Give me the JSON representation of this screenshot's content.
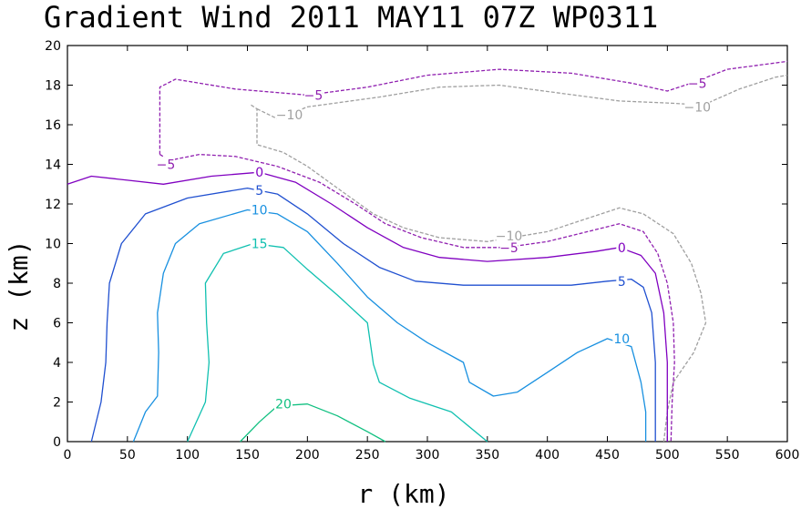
{
  "chart_data": {
    "type": "contour",
    "title": "Gradient Wind 2011 MAY11 07Z  WP0311",
    "xlabel": "r (km)",
    "ylabel": "z (km)",
    "xlim": [
      0,
      600
    ],
    "ylim": [
      0,
      20
    ],
    "xticks": [
      "0",
      "50",
      "100",
      "150",
      "200",
      "250",
      "300",
      "350",
      "400",
      "450",
      "500",
      "550",
      "600"
    ],
    "yticks": [
      "0",
      "2",
      "4",
      "6",
      "8",
      "10",
      "12",
      "14",
      "16",
      "18",
      "20"
    ],
    "grid": false,
    "contours": [
      {
        "level": -10,
        "color": "#a0a0a0",
        "dashed": true,
        "points": [
          [
            153,
            17.0
          ],
          [
            158,
            16.8
          ],
          [
            158,
            15.0
          ],
          [
            180,
            14.6
          ],
          [
            200,
            13.9
          ],
          [
            225,
            12.8
          ],
          [
            255,
            11.5
          ],
          [
            280,
            10.8
          ],
          [
            310,
            10.3
          ],
          [
            350,
            10.1
          ],
          [
            400,
            10.6
          ],
          [
            440,
            11.4
          ],
          [
            460,
            11.8
          ],
          [
            480,
            11.5
          ],
          [
            505,
            10.5
          ],
          [
            520,
            9.0
          ],
          [
            528,
            7.5
          ],
          [
            532,
            6.0
          ],
          [
            522,
            4.5
          ],
          [
            505,
            3.0
          ],
          [
            500,
            1.5
          ],
          [
            497,
            0.0
          ]
        ],
        "points2": [
          [
            158,
            16.8
          ],
          [
            175,
            16.3
          ],
          [
            200,
            16.9
          ],
          [
            260,
            17.4
          ],
          [
            310,
            17.9
          ],
          [
            360,
            18.0
          ],
          [
            410,
            17.6
          ],
          [
            460,
            17.2
          ],
          [
            500,
            17.1
          ],
          [
            530,
            17.0
          ],
          [
            560,
            17.8
          ],
          [
            590,
            18.4
          ],
          [
            600,
            18.5
          ]
        ],
        "labels": [
          {
            "text": "−10",
            "x": 185,
            "y": 16.5
          },
          {
            "text": "−10",
            "x": 525,
            "y": 16.9
          },
          {
            "text": "−10",
            "x": 368,
            "y": 10.4
          }
        ]
      },
      {
        "level": -5,
        "color": "#9020b0",
        "dashed": true,
        "points": [
          [
            77,
            14.5
          ],
          [
            85,
            14.2
          ],
          [
            110,
            14.5
          ],
          [
            140,
            14.4
          ],
          [
            175,
            13.9
          ],
          [
            210,
            13.1
          ],
          [
            240,
            12.0
          ],
          [
            265,
            11.0
          ],
          [
            295,
            10.3
          ],
          [
            330,
            9.8
          ],
          [
            365,
            9.8
          ],
          [
            400,
            10.1
          ],
          [
            440,
            10.7
          ],
          [
            460,
            11.0
          ],
          [
            480,
            10.6
          ],
          [
            492,
            9.5
          ],
          [
            500,
            8.0
          ],
          [
            505,
            6.0
          ],
          [
            506,
            4.0
          ],
          [
            504,
            2.0
          ],
          [
            503,
            0.0
          ]
        ],
        "points2": [
          [
            77,
            14.5
          ],
          [
            77,
            17.9
          ],
          [
            90,
            18.3
          ],
          [
            140,
            17.8
          ],
          [
            200,
            17.5
          ],
          [
            250,
            17.9
          ],
          [
            300,
            18.5
          ],
          [
            360,
            18.8
          ],
          [
            420,
            18.6
          ],
          [
            470,
            18.1
          ],
          [
            500,
            17.7
          ],
          [
            520,
            18.1
          ],
          [
            550,
            18.8
          ],
          [
            600,
            19.2
          ]
        ],
        "labels": [
          {
            "text": "−5",
            "x": 205,
            "y": 17.5
          },
          {
            "text": "−5",
            "x": 525,
            "y": 18.1
          },
          {
            "text": "−5",
            "x": 82,
            "y": 14.0
          },
          {
            "text": "−5",
            "x": 368,
            "y": 9.8
          }
        ]
      },
      {
        "level": 0,
        "color": "#8000c0",
        "dashed": false,
        "points": [
          [
            0,
            13.0
          ],
          [
            20,
            13.4
          ],
          [
            50,
            13.2
          ],
          [
            80,
            13.0
          ],
          [
            120,
            13.4
          ],
          [
            160,
            13.6
          ],
          [
            190,
            13.1
          ],
          [
            220,
            12.0
          ],
          [
            250,
            10.8
          ],
          [
            280,
            9.8
          ],
          [
            310,
            9.3
          ],
          [
            350,
            9.1
          ],
          [
            400,
            9.3
          ],
          [
            440,
            9.6
          ],
          [
            460,
            9.8
          ],
          [
            478,
            9.4
          ],
          [
            490,
            8.5
          ],
          [
            497,
            6.5
          ],
          [
            500,
            4.0
          ],
          [
            500,
            2.0
          ],
          [
            500,
            0.0
          ]
        ],
        "labels": [
          {
            "text": "0",
            "x": 160,
            "y": 13.6
          },
          {
            "text": "0",
            "x": 462,
            "y": 9.8
          }
        ]
      },
      {
        "level": 5,
        "color": "#2050d0",
        "dashed": false,
        "points": [
          [
            20,
            0.0
          ],
          [
            28,
            2.0
          ],
          [
            32,
            4.0
          ],
          [
            33,
            6.0
          ],
          [
            35,
            8.0
          ],
          [
            45,
            10.0
          ],
          [
            65,
            11.5
          ],
          [
            100,
            12.3
          ],
          [
            150,
            12.8
          ],
          [
            175,
            12.5
          ],
          [
            200,
            11.5
          ],
          [
            230,
            10.0
          ],
          [
            260,
            8.8
          ],
          [
            290,
            8.1
          ],
          [
            330,
            7.9
          ],
          [
            380,
            7.9
          ],
          [
            420,
            7.9
          ],
          [
            450,
            8.1
          ],
          [
            470,
            8.2
          ],
          [
            480,
            7.8
          ],
          [
            487,
            6.5
          ],
          [
            490,
            4.0
          ],
          [
            490,
            2.0
          ],
          [
            490,
            0.0
          ]
        ],
        "labels": [
          {
            "text": "5",
            "x": 160,
            "y": 12.7
          },
          {
            "text": "5",
            "x": 462,
            "y": 8.1
          }
        ]
      },
      {
        "level": 10,
        "color": "#1890e0",
        "dashed": false,
        "points": [
          [
            55,
            0.0
          ],
          [
            65,
            1.5
          ],
          [
            75,
            2.3
          ],
          [
            76,
            4.5
          ],
          [
            75,
            6.5
          ],
          [
            80,
            8.5
          ],
          [
            90,
            10.0
          ],
          [
            110,
            11.0
          ],
          [
            150,
            11.7
          ],
          [
            175,
            11.5
          ],
          [
            200,
            10.6
          ],
          [
            225,
            9.0
          ],
          [
            250,
            7.3
          ],
          [
            275,
            6.0
          ],
          [
            300,
            5.0
          ],
          [
            330,
            4.0
          ],
          [
            335,
            3.0
          ],
          [
            355,
            2.3
          ],
          [
            375,
            2.5
          ],
          [
            400,
            3.5
          ],
          [
            425,
            4.5
          ],
          [
            450,
            5.2
          ],
          [
            470,
            4.8
          ],
          [
            478,
            3.0
          ],
          [
            482,
            1.5
          ],
          [
            482,
            0.0
          ]
        ],
        "labels": [
          {
            "text": "10",
            "x": 160,
            "y": 11.7
          },
          {
            "text": "10",
            "x": 462,
            "y": 5.2
          }
        ]
      },
      {
        "level": 15,
        "color": "#10c0b0",
        "dashed": false,
        "points": [
          [
            100,
            0.0
          ],
          [
            115,
            2.0
          ],
          [
            118,
            4.0
          ],
          [
            116,
            6.0
          ],
          [
            115,
            8.0
          ],
          [
            130,
            9.5
          ],
          [
            155,
            10.0
          ],
          [
            180,
            9.8
          ],
          [
            200,
            8.7
          ],
          [
            225,
            7.4
          ],
          [
            250,
            6.0
          ],
          [
            255,
            3.9
          ],
          [
            260,
            3.0
          ],
          [
            285,
            2.2
          ],
          [
            320,
            1.5
          ],
          [
            350,
            0.0
          ]
        ],
        "labels": [
          {
            "text": "15",
            "x": 160,
            "y": 10.0
          }
        ]
      },
      {
        "level": 20,
        "color": "#10c080",
        "dashed": false,
        "points": [
          [
            144,
            0.0
          ],
          [
            160,
            1.0
          ],
          [
            175,
            1.8
          ],
          [
            200,
            1.9
          ],
          [
            225,
            1.3
          ],
          [
            250,
            0.5
          ],
          [
            265,
            0.0
          ]
        ],
        "labels": [
          {
            "text": "20",
            "x": 180,
            "y": 1.9
          }
        ]
      }
    ]
  }
}
